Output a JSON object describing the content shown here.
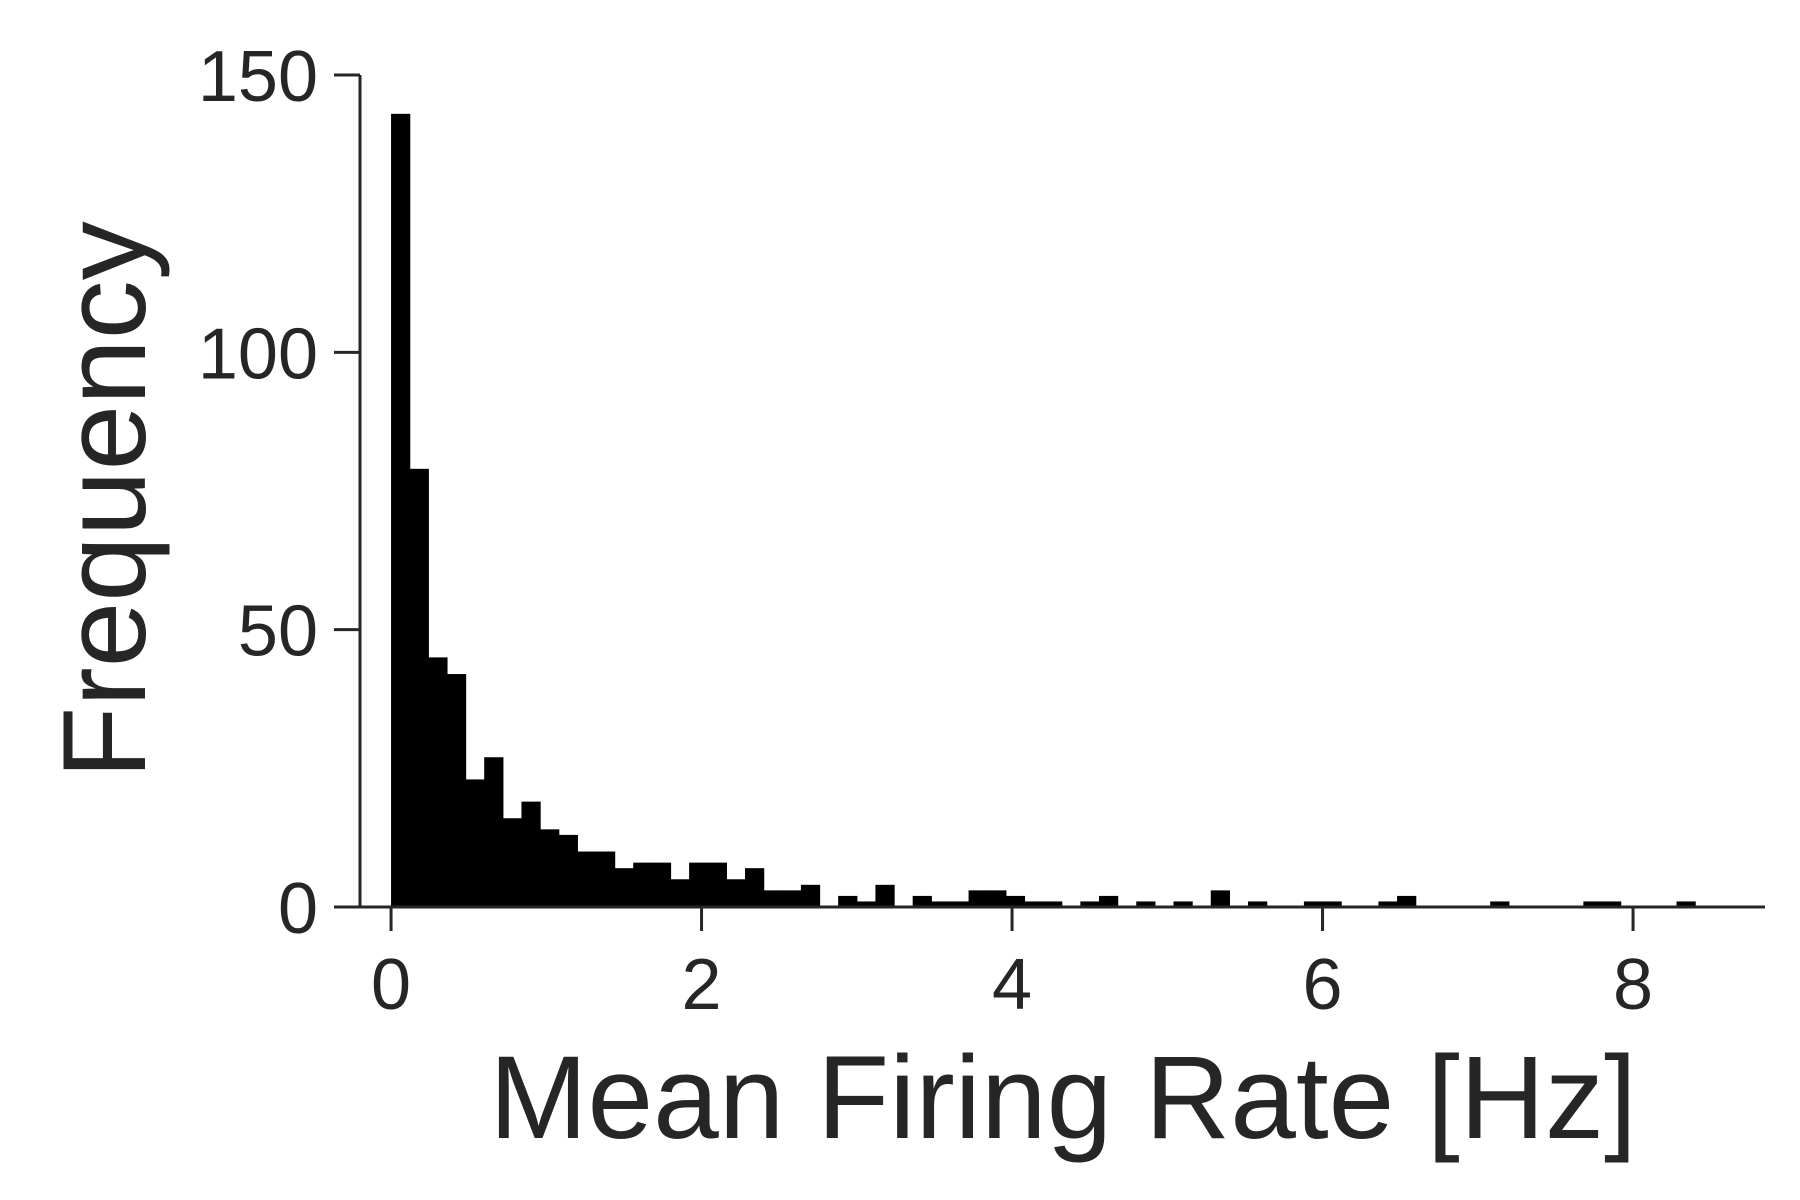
{
  "chart_data": {
    "type": "bar",
    "subtype": "histogram",
    "title": "",
    "xlabel": "Mean Firing Rate [Hz]",
    "ylabel": "Frequency",
    "xlim": [
      -0.2,
      8.85
    ],
    "ylim": [
      0,
      150
    ],
    "xticks": [
      0,
      2,
      4,
      6,
      8
    ],
    "yticks": [
      0,
      50,
      100,
      150
    ],
    "grid": false,
    "legend": "none",
    "bar_color": "#000000",
    "axis_color": "#262626",
    "bin_start": 0.0,
    "bin_width": 0.12,
    "counts": [
      143,
      79,
      45,
      42,
      23,
      27,
      16,
      19,
      14,
      13,
      10,
      10,
      7,
      8,
      8,
      5,
      8,
      8,
      5,
      7,
      3,
      3,
      4,
      0,
      2,
      1,
      4,
      0,
      2,
      1,
      1,
      3,
      3,
      2,
      1,
      1,
      0,
      1,
      2,
      0,
      1,
      0,
      1,
      0,
      3,
      0,
      1,
      0,
      0,
      1,
      1,
      0,
      0,
      1,
      2,
      0,
      0,
      0,
      0,
      1,
      0,
      0,
      0,
      0,
      1,
      1,
      0,
      0,
      0,
      1,
      0
    ]
  }
}
